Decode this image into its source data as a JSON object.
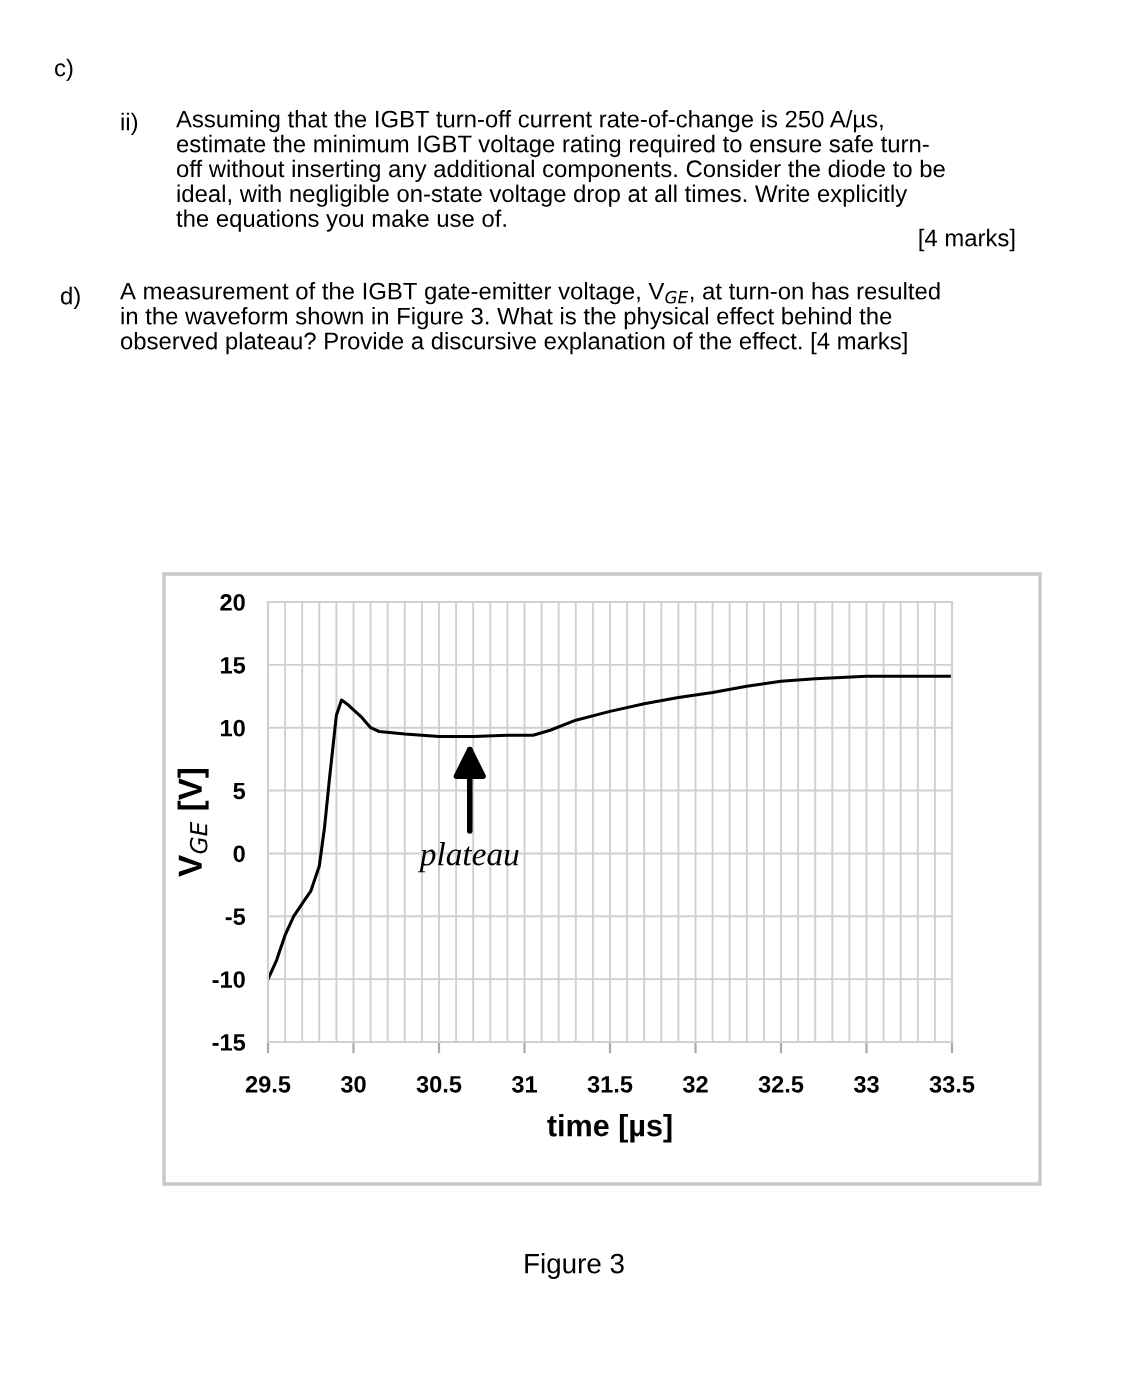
{
  "chart_data": {
    "type": "line",
    "xlabel": "time [µs]",
    "ylabel": "V$_{GE}$ [V]",
    "x": [
      29.5,
      29.55,
      29.6,
      29.65,
      29.7,
      29.75,
      29.8,
      29.83,
      29.86,
      29.9,
      29.93,
      29.97,
      30.05,
      30.1,
      30.15,
      30.3,
      30.5,
      30.7,
      30.9,
      31.05,
      31.15,
      31.3,
      31.5,
      31.7,
      31.9,
      32.1,
      32.3,
      32.5,
      32.7,
      33.0,
      33.3,
      33.5
    ],
    "series": [
      {
        "color": "#000000",
        "values": [
          -10,
          -8.5,
          -6.5,
          -5,
          -4,
          -3,
          -1,
          2,
          6,
          11,
          12.2,
          11.8,
          10.8,
          10,
          9.7,
          9.5,
          9.3,
          9.3,
          9.4,
          9.4,
          9.8,
          10.6,
          11.3,
          11.9,
          12.4,
          12.8,
          13.3,
          13.7,
          13.9,
          14.1,
          14.1,
          14.1
        ]
      }
    ],
    "xlim": [
      29.5,
      33.5
    ],
    "xticks": [
      29.5,
      30,
      30.5,
      31,
      31.5,
      32,
      32.5,
      33,
      33.5
    ],
    "ylim": [
      -15,
      20
    ],
    "yticks": [
      -15,
      -10,
      -5,
      0,
      5,
      10,
      15,
      20
    ],
    "grid": true,
    "marker": "none",
    "line_style": "solid",
    "annotations": [
      {
        "text": "plateau",
        "x": 30.68,
        "y": 9.2
      },
      "c)",
      "ii)",
      "Assuming that the IGBT turn-off current rate-of-change is 250 A/µs,\nestimate the minimum IGBT voltage rating required to ensure safe turn-\noff without inserting any additional components. Consider the diode to be\nideal, with negligible on-state voltage drop at all times. Write explicitly\nthe equations you make use of.",
      "[4 marks]",
      "d)",
      "A measurement of the IGBT gate-emitter voltage, V$_{GE}$, at turn-on has resulted\nin the waveform shown in Figure 3. What is the physical effect behind the\nobserved plateau? Provide a discursive explanation of the effect. [4 marks]",
      "Figure 3"
    ]
  }
}
